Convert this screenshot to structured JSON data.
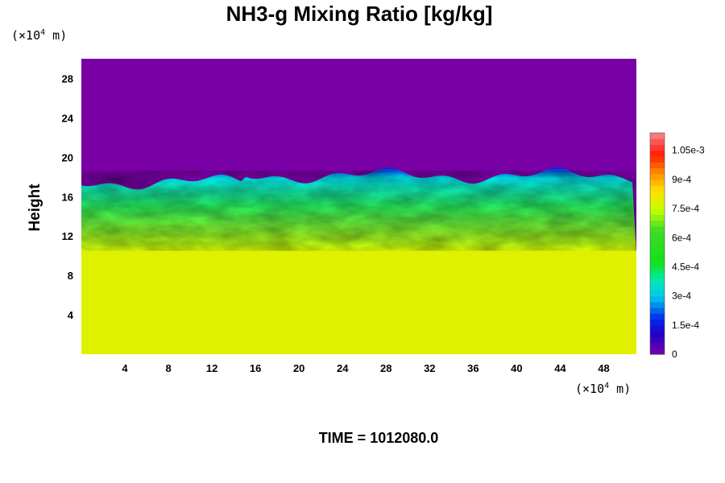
{
  "chart_data": {
    "type": "heatmap",
    "title": "NH3-g Mixing Ratio [kg/kg]",
    "ylabel": "Height",
    "x_unit": {
      "prefix": "(×10",
      "exp": "4",
      "suffix": " m)"
    },
    "y_unit": {
      "prefix": "(×10",
      "exp": "4",
      "suffix": " m)"
    },
    "xlim": [
      0,
      51
    ],
    "ylim": [
      0,
      30
    ],
    "x_ticks": [
      4,
      8,
      12,
      16,
      20,
      24,
      28,
      32,
      36,
      40,
      44,
      48
    ],
    "y_ticks": [
      4,
      8,
      12,
      16,
      20,
      24,
      28
    ],
    "colorbar": {
      "range": [
        0,
        0.00114
      ],
      "tick_values": [
        0,
        0.00015,
        0.0003,
        0.00045,
        0.0006,
        0.00075,
        0.0009,
        0.00105
      ],
      "tick_labels": [
        "0",
        "1.5e-4",
        "3e-4",
        "4.5e-4",
        "6e-4",
        "7.5e-4",
        "9e-4",
        "1.05e-3"
      ]
    },
    "field_summary": {
      "lower_uniform_value": 0.00079,
      "lower_layer_top_height": 10.5,
      "mixed_layer_top_height": 17.8,
      "upper_value": 0
    },
    "footer": "TIME = 1012080.0"
  }
}
